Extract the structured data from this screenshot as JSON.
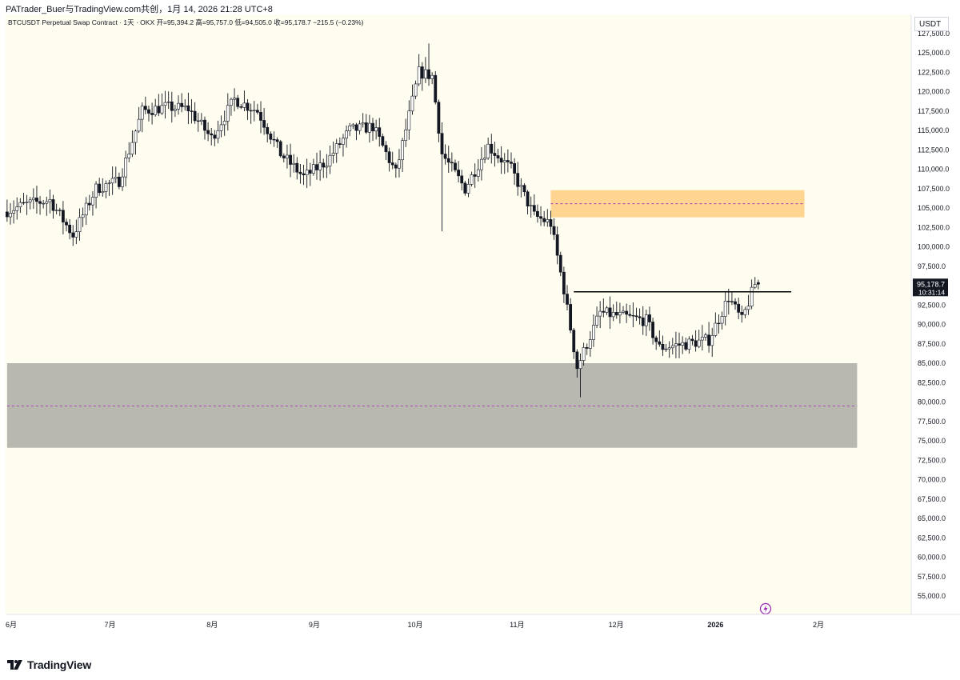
{
  "header": {
    "attribution": "PATrader_Buer与TradingView.com共创，1月 14, 2026 21:28 UTC+8",
    "legend": "BTCUSDT Perpetual Swap Contract · 1天 · OKX  开=95,394.2  高=95,757.0  低=94,505.0  收=95,178.7  −215.5 (−0.23%)"
  },
  "currency_label": "USDT",
  "footer": {
    "brand": "TradingView"
  },
  "colors": {
    "background": "#fffdf0",
    "candle_up": "#ffffff",
    "candle_down": "#131722",
    "supply_zone": "#ffd591",
    "demand_zone": "#b8b8b0",
    "zone_midline": "#9c27b0",
    "resistance_line": "#000000",
    "price_label_bg": "#131722",
    "alert_icon": "#9c27b0"
  },
  "chart_data": {
    "type": "candlestick",
    "symbol": "BTCUSDT",
    "interval": "1天",
    "exchange": "OKX",
    "y_range": [
      52500,
      127500
    ],
    "y_ticks": [
      127500,
      125000,
      122500,
      120000,
      117500,
      115000,
      112500,
      110000,
      107500,
      105000,
      102500,
      100000,
      97500,
      95000,
      92500,
      90000,
      87500,
      85000,
      82500,
      80000,
      77500,
      75000,
      72500,
      70000,
      67500,
      65000,
      62500,
      60000,
      57500,
      55000
    ],
    "x_labels": [
      {
        "label": "6月",
        "date": "2025-06-01"
      },
      {
        "label": "7月",
        "date": "2025-07-01"
      },
      {
        "label": "8月",
        "date": "2025-08-01"
      },
      {
        "label": "9月",
        "date": "2025-09-01"
      },
      {
        "label": "10月",
        "date": "2025-10-01"
      },
      {
        "label": "11月",
        "date": "2025-11-01"
      },
      {
        "label": "12月",
        "date": "2025-12-01"
      },
      {
        "label": "2026",
        "date": "2026-01-01",
        "bold": true
      },
      {
        "label": "2月",
        "date": "2026-02-01"
      }
    ],
    "x_range": [
      "2025-05-31",
      "2026-03-10"
    ],
    "last_price": {
      "value": 95178.7,
      "label": "95,178.7",
      "countdown": "10:31:14"
    },
    "zones": [
      {
        "name": "supply",
        "x_start": "2025-11-12",
        "x_end": "2026-01-28",
        "y_low": 103800,
        "y_high": 107300,
        "mid": 105550
      },
      {
        "name": "demand",
        "x_start": "2025-05-31",
        "x_end": "2026-02-13",
        "y_low": 74100,
        "y_high": 85000,
        "mid": 79500
      }
    ],
    "resistance": {
      "x_start": "2025-11-19",
      "x_end": "2026-01-24",
      "y": 94200
    },
    "weekly_path": [
      [
        "2025-05-31",
        104500
      ],
      [
        "2025-06-07",
        105500
      ],
      [
        "2025-06-14",
        106000
      ],
      [
        "2025-06-21",
        101500
      ],
      [
        "2025-06-28",
        107500
      ],
      [
        "2025-07-05",
        108500
      ],
      [
        "2025-07-12",
        117500
      ],
      [
        "2025-07-19",
        118000
      ],
      [
        "2025-07-26",
        117800
      ],
      [
        "2025-08-02",
        114000
      ],
      [
        "2025-08-09",
        119000
      ],
      [
        "2025-08-16",
        117500
      ],
      [
        "2025-08-23",
        112000
      ],
      [
        "2025-08-30",
        109000
      ],
      [
        "2025-09-06",
        111000
      ],
      [
        "2025-09-13",
        115000
      ],
      [
        "2025-09-20",
        115500
      ],
      [
        "2025-09-27",
        109500
      ],
      [
        "2025-10-04",
        122500
      ],
      [
        "2025-10-08",
        122000
      ],
      [
        "2025-10-11",
        112000
      ],
      [
        "2025-10-18",
        107500
      ],
      [
        "2025-10-25",
        113000
      ],
      [
        "2025-11-01",
        110000
      ],
      [
        "2025-11-08",
        104000
      ],
      [
        "2025-11-13",
        103000
      ],
      [
        "2025-11-17",
        94500
      ],
      [
        "2025-11-21",
        84500
      ],
      [
        "2025-11-28",
        91500
      ],
      [
        "2025-12-05",
        91000
      ],
      [
        "2025-12-12",
        90500
      ],
      [
        "2025-12-16",
        87000
      ],
      [
        "2025-12-24",
        87500
      ],
      [
        "2025-12-31",
        88000
      ],
      [
        "2026-01-06",
        93500
      ],
      [
        "2026-01-10",
        90500
      ],
      [
        "2026-01-14",
        95178
      ]
    ],
    "wick_extremes": [
      [
        "2025-10-06",
        126200
      ],
      [
        "2025-10-10",
        102000
      ],
      [
        "2025-11-21",
        80600
      ],
      [
        "2026-01-14",
        96800
      ]
    ]
  }
}
